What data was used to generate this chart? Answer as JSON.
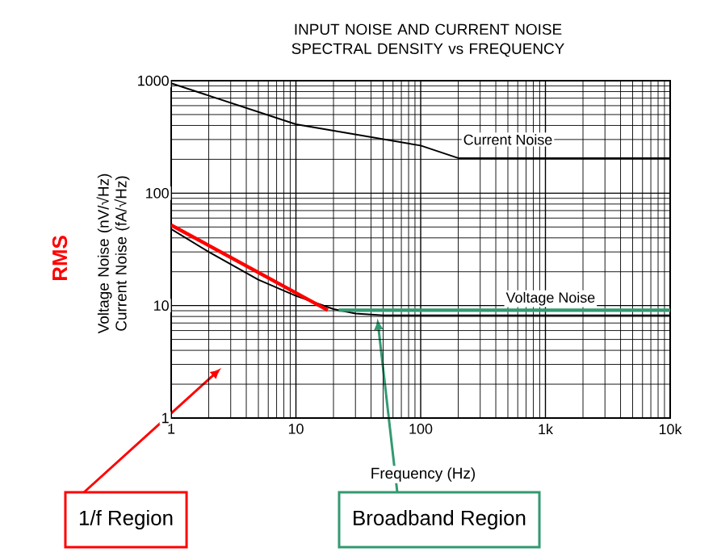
{
  "chart_data": {
    "type": "line",
    "title": "INPUT NOISE AND CURRENT NOISE SPECTRAL DENSITY vs FREQUENCY",
    "xlabel": "Frequency (Hz)",
    "ylabel": "Voltage Noise (nV/√Hz) Current Noise (fA/√Hz)",
    "log": "xy",
    "grid": true,
    "marker": "none",
    "line_style": "solid",
    "xlim": [
      1,
      10000
    ],
    "ylim": [
      1,
      1000
    ],
    "xticks": [
      1,
      10,
      100,
      {
        "value": 1000,
        "label": "1k"
      },
      {
        "value": 10000,
        "label": "10k"
      }
    ],
    "yticks": [
      1,
      10,
      100,
      1000
    ],
    "series": [
      {
        "name": "Current Noise",
        "color": "#000000",
        "x": [
          1,
          10,
          100,
          200,
          10000
        ],
        "values": [
          950,
          410,
          265,
          205,
          205
        ]
      },
      {
        "name": "Voltage Noise",
        "color": "#000000",
        "x": [
          1,
          2,
          5,
          10,
          20,
          30,
          50,
          10000
        ],
        "values": [
          48,
          30,
          17,
          12.2,
          9.3,
          8.5,
          8.2,
          8.2
        ]
      },
      {
        "color": "#ff0000",
        "x": [
          1,
          18
        ],
        "values": [
          52,
          9.1
        ]
      },
      {
        "color": "#339970",
        "x": [
          22,
          10000
        ],
        "values": [
          9.1,
          9.1
        ]
      }
    ],
    "annotations": [
      "RMS",
      "1/f Region",
      {
        "text": "Broadband Region",
        "x": 45,
        "y": 8.2
      }
    ]
  }
}
